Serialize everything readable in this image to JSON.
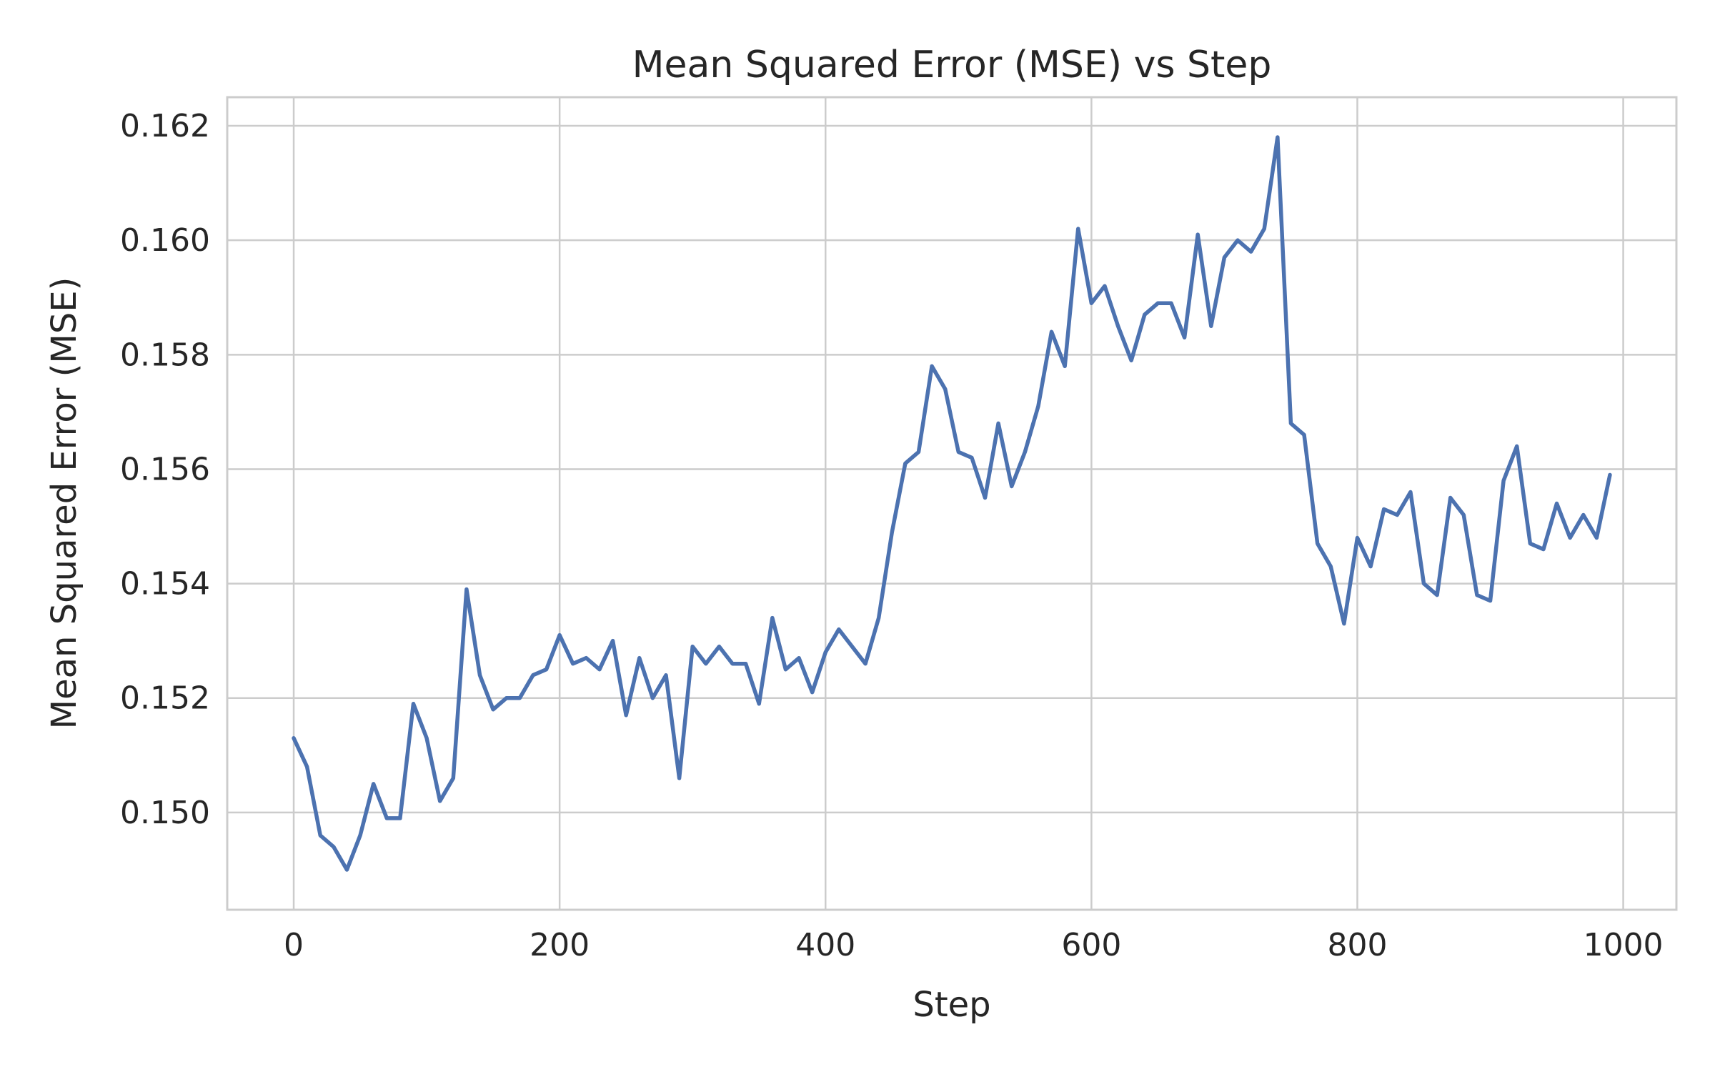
{
  "chart_data": {
    "type": "line",
    "title": "Mean Squared Error (MSE) vs Step",
    "xlabel": "Step",
    "ylabel": "Mean Squared Error (MSE)",
    "xlim": [
      -50,
      1040
    ],
    "ylim": [
      0.1483,
      0.1625
    ],
    "xticks": [
      0,
      200,
      400,
      600,
      800,
      1000
    ],
    "xtick_labels": [
      "0",
      "200",
      "400",
      "600",
      "800",
      "1000"
    ],
    "yticks": [
      0.15,
      0.152,
      0.154,
      0.156,
      0.158,
      0.16,
      0.162
    ],
    "ytick_labels": [
      "0.150",
      "0.152",
      "0.154",
      "0.156",
      "0.158",
      "0.160",
      "0.162"
    ],
    "grid": true,
    "line_color": "#4c72b0",
    "series": [
      {
        "x": [
          0,
          10,
          20,
          30,
          40,
          50,
          60,
          70,
          80,
          90,
          100,
          110,
          120,
          130,
          140,
          150,
          160,
          170,
          180,
          190,
          200,
          210,
          220,
          230,
          240,
          250,
          260,
          270,
          280,
          290,
          300,
          310,
          320,
          330,
          340,
          350,
          360,
          370,
          380,
          390,
          400,
          410,
          420,
          430,
          440,
          450,
          460,
          470,
          480,
          490,
          500,
          510,
          520,
          530,
          540,
          550,
          560,
          570,
          580,
          590,
          600,
          610,
          620,
          630,
          640,
          650,
          660,
          670,
          680,
          690,
          700,
          710,
          720,
          730,
          740,
          750,
          760,
          770,
          780,
          790,
          800,
          810,
          820,
          830,
          840,
          850,
          860,
          870,
          880,
          890,
          900,
          910,
          920,
          930,
          940,
          950,
          960,
          970,
          980,
          990
        ],
        "values": [
          0.1513,
          0.1508,
          0.1496,
          0.1494,
          0.149,
          0.1496,
          0.1505,
          0.1499,
          0.1499,
          0.1519,
          0.1513,
          0.1502,
          0.1506,
          0.1539,
          0.1524,
          0.1518,
          0.152,
          0.152,
          0.1524,
          0.1525,
          0.1531,
          0.1526,
          0.1527,
          0.1525,
          0.153,
          0.1517,
          0.1527,
          0.152,
          0.1524,
          0.1506,
          0.1529,
          0.1526,
          0.1529,
          0.1526,
          0.1526,
          0.1519,
          0.1534,
          0.1525,
          0.1527,
          0.1521,
          0.1528,
          0.1532,
          0.1529,
          0.1526,
          0.1534,
          0.1549,
          0.1561,
          0.1563,
          0.1578,
          0.1574,
          0.1563,
          0.1562,
          0.1555,
          0.1568,
          0.1557,
          0.1563,
          0.1571,
          0.1584,
          0.1578,
          0.1602,
          0.1589,
          0.1592,
          0.1585,
          0.1579,
          0.1587,
          0.1589,
          0.1589,
          0.1583,
          0.1601,
          0.1585,
          0.1597,
          0.16,
          0.1598,
          0.1602,
          0.1618,
          0.1568,
          0.1566,
          0.1547,
          0.1543,
          0.1533,
          0.1548,
          0.1543,
          0.1553,
          0.1552,
          0.1556,
          0.154,
          0.1538,
          0.1555,
          0.1552,
          0.1538,
          0.1537,
          0.1558,
          0.1564,
          0.1547,
          0.1546,
          0.1554,
          0.1548,
          0.1552,
          0.1548,
          0.1559
        ]
      }
    ]
  }
}
